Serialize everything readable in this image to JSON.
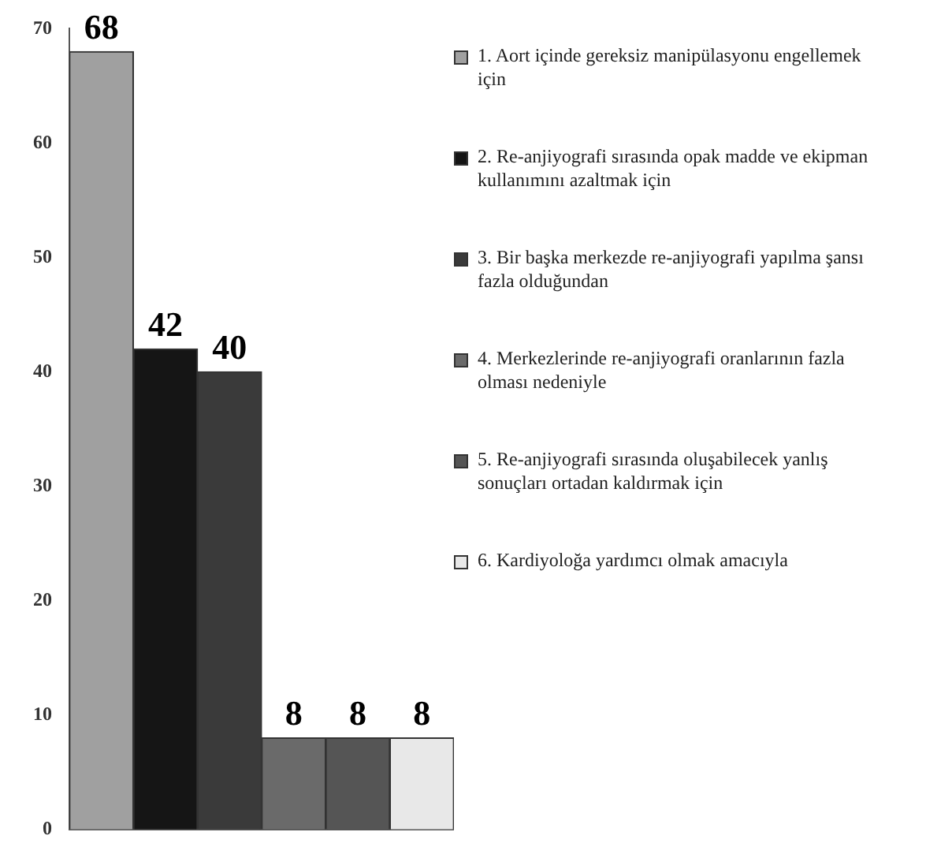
{
  "chart_data": {
    "type": "bar",
    "categories": [
      null,
      null,
      null,
      null,
      null,
      null
    ],
    "series": [
      {
        "name": "1. Aort içinde gereksiz manipülasyonu engellemek için",
        "color": "#a0a0a0",
        "values": [
          68,
          null,
          null,
          null,
          null,
          null
        ]
      },
      {
        "name": "2. Re-anjiyografi sırasında opak madde ve ekipman kullanımını azaltmak için",
        "color": "#151515",
        "values": [
          null,
          42,
          null,
          null,
          null,
          null
        ]
      },
      {
        "name": "3. Bir başka merkezde re-anjiyografi yapılma şansı fazla olduğundan",
        "color": "#3a3a3a",
        "values": [
          null,
          null,
          40,
          null,
          null,
          null
        ]
      },
      {
        "name": "4. Merkezlerinde re-anjiyografi oranlarının fazla olması nedeniyle",
        "color": "#6a6a6a",
        "values": [
          null,
          null,
          null,
          8,
          null,
          null
        ]
      },
      {
        "name": "5. Re-anjiyografi sırasında oluşabilecek yanlış sonuçları ortadan kaldırmak için",
        "color": "#555555",
        "values": [
          null,
          null,
          null,
          null,
          8,
          null
        ]
      },
      {
        "name": "6. Kardiyoloğa yardımcı olmak amacıyla",
        "color": "#e8e8e8",
        "values": [
          null,
          null,
          null,
          null,
          null,
          8
        ]
      }
    ],
    "ylim": [
      0,
      70
    ],
    "yticks": [
      0,
      10,
      20,
      30,
      40,
      50,
      60,
      70
    ],
    "grid": false,
    "legend": "right",
    "data_labels": true
  }
}
